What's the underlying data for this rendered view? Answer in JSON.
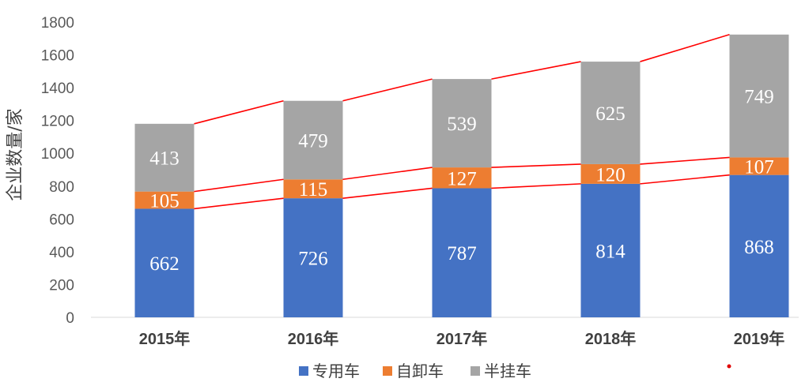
{
  "chart_data": {
    "type": "bar",
    "stacked": true,
    "title": "",
    "xlabel": "",
    "ylabel": "企业数量/家",
    "ylim": [
      0,
      1800
    ],
    "ytick_step": 200,
    "grid": false,
    "legend_position": "bottom",
    "categories": [
      "2015年",
      "2016年",
      "2017年",
      "2018年",
      "2019年"
    ],
    "series": [
      {
        "name": "专用车",
        "color": "#4472C4",
        "values": [
          662,
          726,
          787,
          814,
          868
        ]
      },
      {
        "name": "自卸车",
        "color": "#ED7D31",
        "values": [
          105,
          115,
          127,
          120,
          107
        ]
      },
      {
        "name": "半挂车",
        "color": "#A5A5A5",
        "values": [
          413,
          479,
          539,
          625,
          749
        ]
      }
    ],
    "trend_lines": {
      "color": "#FF0000",
      "connects": "top of each stacked segment across years"
    }
  }
}
